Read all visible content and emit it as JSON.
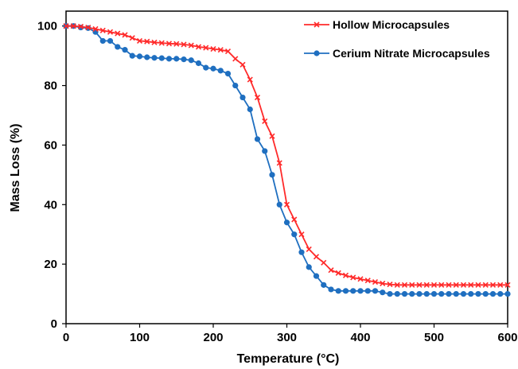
{
  "chart_data": {
    "type": "line",
    "xlabel": "Temperature (°C)",
    "ylabel": "Mass Loss (%)",
    "xlim": [
      0,
      600
    ],
    "ylim": [
      0,
      105
    ],
    "xticks": [
      0,
      100,
      200,
      300,
      400,
      500,
      600
    ],
    "yticks": [
      0,
      20,
      40,
      60,
      80,
      100
    ],
    "grid": false,
    "legend_position": "top-right",
    "series": [
      {
        "name": "Hollow Microcapsules",
        "color": "#ff2a2a",
        "marker": "x",
        "x": [
          0,
          10,
          20,
          30,
          40,
          50,
          60,
          70,
          80,
          90,
          100,
          110,
          120,
          130,
          140,
          150,
          160,
          170,
          180,
          190,
          200,
          210,
          220,
          230,
          240,
          250,
          260,
          270,
          280,
          290,
          300,
          310,
          320,
          330,
          340,
          350,
          360,
          370,
          380,
          390,
          400,
          410,
          420,
          430,
          440,
          450,
          460,
          470,
          480,
          490,
          500,
          510,
          520,
          530,
          540,
          550,
          560,
          570,
          580,
          590,
          600
        ],
        "y": [
          100,
          100,
          99.8,
          99.5,
          99,
          98.5,
          98,
          97.5,
          97,
          96,
          95,
          94.8,
          94.5,
          94.3,
          94.1,
          94,
          93.8,
          93.5,
          93,
          92.7,
          92.3,
          92,
          91.5,
          89,
          87,
          82,
          76,
          68,
          63,
          54,
          40,
          35,
          30,
          25,
          22.5,
          20.5,
          18,
          17,
          16.2,
          15.5,
          15,
          14.5,
          14,
          13.5,
          13.2,
          13,
          13,
          13,
          13,
          13,
          13,
          13,
          13,
          13,
          13,
          13,
          13,
          13,
          13,
          13,
          13
        ]
      },
      {
        "name": "Cerium Nitrate Microcapsules",
        "color": "#1f6fc0",
        "marker": "o",
        "x": [
          0,
          10,
          20,
          30,
          40,
          50,
          60,
          70,
          80,
          90,
          100,
          110,
          120,
          130,
          140,
          150,
          160,
          170,
          180,
          190,
          200,
          210,
          220,
          230,
          240,
          250,
          260,
          270,
          280,
          290,
          300,
          310,
          320,
          330,
          340,
          350,
          360,
          370,
          380,
          390,
          400,
          410,
          420,
          430,
          440,
          450,
          460,
          470,
          480,
          490,
          500,
          510,
          520,
          530,
          540,
          550,
          560,
          570,
          580,
          590,
          600
        ],
        "y": [
          100,
          100,
          99.5,
          99.3,
          98,
          95,
          95,
          93,
          92,
          90,
          89.8,
          89.5,
          89.3,
          89.2,
          89,
          89,
          88.8,
          88.5,
          87.5,
          86,
          85.7,
          85,
          84,
          80,
          76,
          72,
          62,
          58,
          50,
          40,
          34,
          30,
          24,
          19,
          16,
          13,
          11.5,
          11,
          11,
          11,
          11,
          11,
          11,
          10.5,
          10,
          10,
          10,
          10,
          10,
          10,
          10,
          10,
          10,
          10,
          10,
          10,
          10,
          10,
          10,
          10,
          10
        ]
      }
    ]
  }
}
